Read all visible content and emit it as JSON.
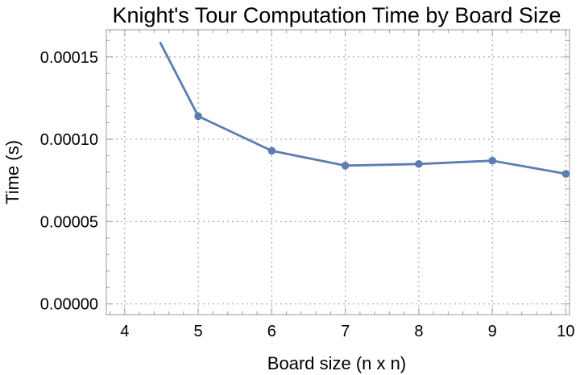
{
  "chart_data": {
    "type": "line",
    "title": "Knight's Tour Computation Time by Board Size",
    "xlabel": "Board size (n x n)",
    "ylabel": "Time (s)",
    "xlim": [
      3.75,
      10.05
    ],
    "ylim": [
      -6.5e-06,
      0.0001665
    ],
    "xticks": [
      4,
      5,
      6,
      7,
      8,
      9,
      10
    ],
    "xtick_labels": [
      "4",
      "5",
      "6",
      "7",
      "8",
      "9",
      "10"
    ],
    "yticks": [
      0,
      5e-05,
      0.0001,
      0.00015
    ],
    "ytick_labels": [
      "0.00000",
      "0.00005",
      "0.00010",
      "0.00015"
    ],
    "grid": true,
    "series": [
      {
        "color": "#5b7db1",
        "x": [
          4.48,
          5,
          6,
          7,
          8,
          9,
          10
        ],
        "y": [
          0.000159,
          0.000114,
          9.3e-05,
          8.4e-05,
          8.5e-05,
          8.7e-05,
          7.9e-05
        ],
        "markers": [
          false,
          true,
          true,
          true,
          true,
          true,
          true
        ]
      }
    ]
  }
}
